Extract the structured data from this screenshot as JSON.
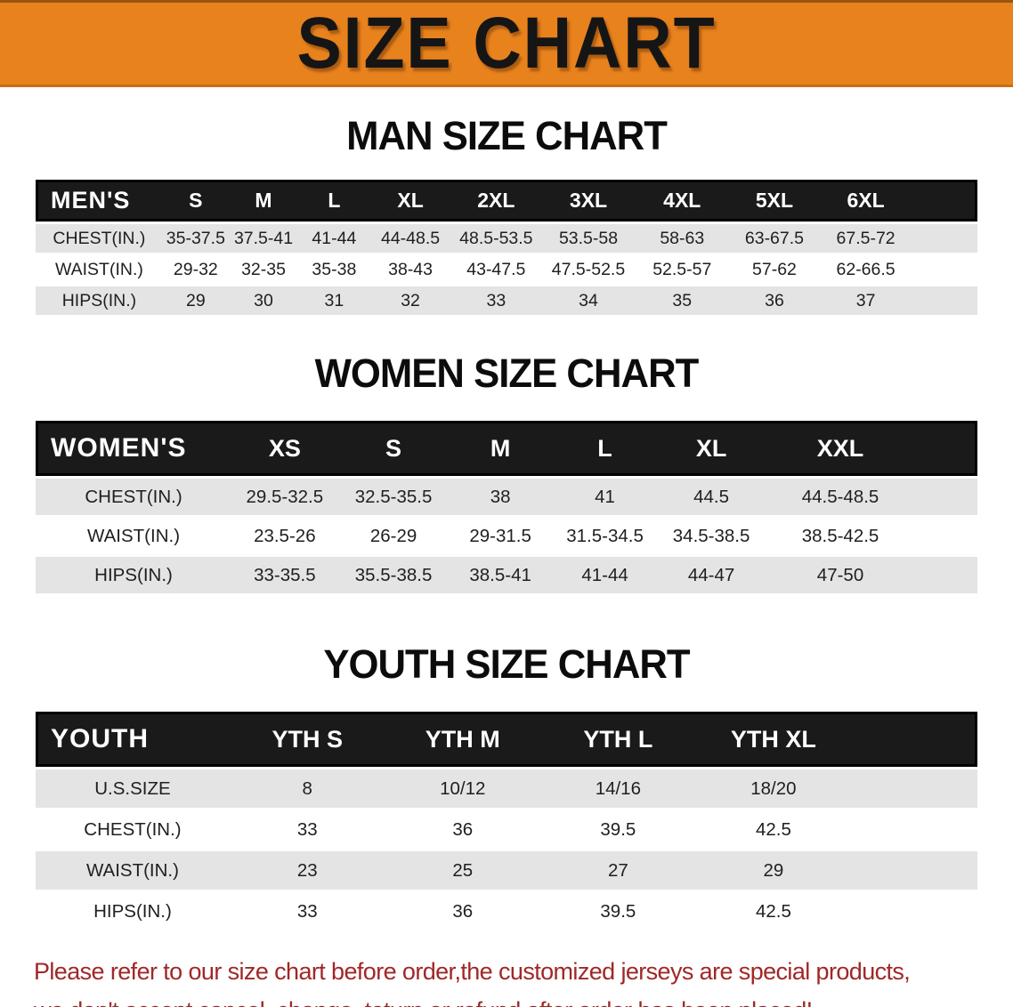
{
  "banner": {
    "title": "SIZE CHART",
    "background": "#E8821D",
    "text_color": "#151515"
  },
  "sections": [
    {
      "heading": "MAN SIZE CHART",
      "table": {
        "title": "MEN'S",
        "columns": [
          "S",
          "M",
          "L",
          "XL",
          "2XL",
          "3XL",
          "4XL",
          "5XL",
          "6XL"
        ],
        "rows": [
          {
            "label": "CHEST(IN.)",
            "values": [
              "35-37.5",
              "37.5-41",
              "41-44",
              "44-48.5",
              "48.5-53.5",
              "53.5-58",
              "58-63",
              "63-67.5",
              "67.5-72"
            ]
          },
          {
            "label": "WAIST(IN.)",
            "values": [
              "29-32",
              "32-35",
              "35-38",
              "38-43",
              "43-47.5",
              "47.5-52.5",
              "52.5-57",
              "57-62",
              "62-66.5"
            ]
          },
          {
            "label": "HIPS(IN.)",
            "values": [
              "29",
              "30",
              "31",
              "32",
              "33",
              "34",
              "35",
              "36",
              "37"
            ]
          }
        ]
      }
    },
    {
      "heading": "WOMEN SIZE CHART",
      "table": {
        "title": "WOMEN'S",
        "columns": [
          "XS",
          "S",
          "M",
          "L",
          "XL",
          "XXL"
        ],
        "rows": [
          {
            "label": "CHEST(IN.)",
            "values": [
              "29.5-32.5",
              "32.5-35.5",
              "38",
              "41",
              "44.5",
              "44.5-48.5"
            ]
          },
          {
            "label": "WAIST(IN.)",
            "values": [
              "23.5-26",
              "26-29",
              "29-31.5",
              "31.5-34.5",
              "34.5-38.5",
              "38.5-42.5"
            ]
          },
          {
            "label": "HIPS(IN.)",
            "values": [
              "33-35.5",
              "35.5-38.5",
              "38.5-41",
              "41-44",
              "44-47",
              "47-50"
            ]
          }
        ]
      }
    },
    {
      "heading": "YOUTH SIZE CHART",
      "table": {
        "title": "YOUTH",
        "columns": [
          "YTH S",
          "YTH M",
          "YTH L",
          "YTH XL"
        ],
        "rows": [
          {
            "label": "U.S.SIZE",
            "values": [
              "8",
              "10/12",
              "14/16",
              "18/20"
            ]
          },
          {
            "label": "CHEST(IN.)",
            "values": [
              "33",
              "36",
              "39.5",
              "42.5"
            ]
          },
          {
            "label": "WAIST(IN.)",
            "values": [
              "23",
              "25",
              "27",
              "29"
            ]
          },
          {
            "label": "HIPS(IN.)",
            "values": [
              "33",
              "36",
              "39.5",
              "42.5"
            ]
          }
        ]
      }
    }
  ],
  "footnote": {
    "color": "#A12727",
    "lines": [
      "Please refer to our size chart before order,the customized jerseys are special products,",
      "we don't accept cancel, change, teturn or refund after order has been placed!"
    ]
  }
}
